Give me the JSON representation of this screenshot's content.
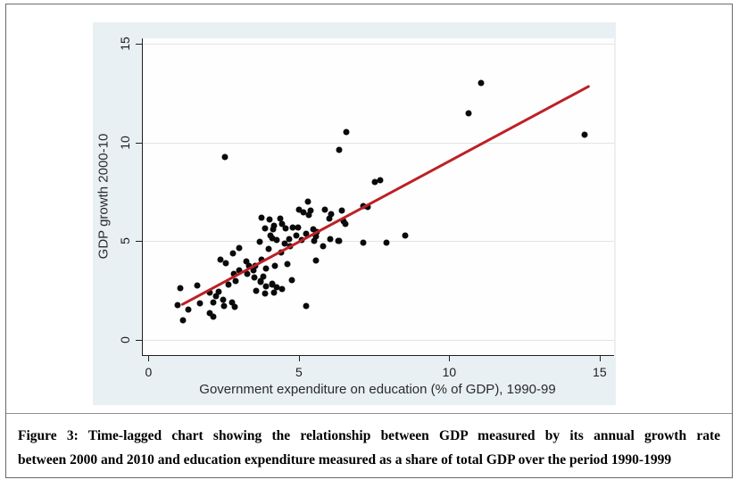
{
  "colors": {
    "chart_background": "#e9f0f3",
    "plot_background": "#fefefe",
    "gridline": "#e2e4e4",
    "axis_line": "#1f1f1f",
    "point_color": "#0a0a0a",
    "trend_line_color": "#bd2026",
    "caption_text": "#000000"
  },
  "caption": {
    "line1": "Figure 3: Time-lagged chart showing the relationship between GDP measured by its annual growth rate",
    "line2": "between 2000 and 2010 and education expenditure measured as a share of total GDP over the period 1990-1999"
  },
  "chart_data": {
    "type": "scatter",
    "title": "",
    "xlabel": "Government expenditure on education (% of GDP), 1990-99",
    "ylabel": "GDP growth 2000-10",
    "xticks": [
      0,
      5,
      10,
      15
    ],
    "yticks": [
      0,
      5,
      10,
      15
    ],
    "xlim": [
      -0.22,
      15.45
    ],
    "ylim": [
      -0.77,
      15.29
    ],
    "grid": "horizontal-only",
    "legend": "none",
    "trendline": {
      "x1": 1.1,
      "y1": 1.8,
      "x2": 14.6,
      "y2": 12.85
    },
    "points": [
      [
        0.95,
        1.75
      ],
      [
        1.04,
        2.64
      ],
      [
        1.12,
        1.0
      ],
      [
        1.28,
        1.52
      ],
      [
        1.59,
        2.75
      ],
      [
        1.69,
        1.86
      ],
      [
        2.02,
        2.38
      ],
      [
        2.11,
        1.9
      ],
      [
        2.02,
        1.37
      ],
      [
        2.12,
        1.19
      ],
      [
        2.3,
        2.42
      ],
      [
        2.21,
        2.2
      ],
      [
        2.44,
        2.04
      ],
      [
        2.47,
        1.71
      ],
      [
        2.74,
        1.89
      ],
      [
        2.83,
        1.66
      ],
      [
        2.63,
        2.79
      ],
      [
        2.8,
        3.35
      ],
      [
        2.98,
        3.52
      ],
      [
        2.86,
        2.99
      ],
      [
        2.36,
        4.07
      ],
      [
        2.53,
        3.89
      ],
      [
        3.0,
        4.65
      ],
      [
        2.77,
        4.4
      ],
      [
        3.22,
        4.0
      ],
      [
        3.32,
        3.74
      ],
      [
        3.45,
        3.54
      ],
      [
        3.25,
        3.35
      ],
      [
        3.48,
        3.17
      ],
      [
        3.71,
        2.94
      ],
      [
        3.79,
        3.2
      ],
      [
        3.89,
        2.71
      ],
      [
        4.09,
        2.84
      ],
      [
        4.24,
        2.68
      ],
      [
        4.41,
        2.56
      ],
      [
        3.69,
        2.99
      ],
      [
        4.07,
        2.79
      ],
      [
        4.73,
        3.05
      ],
      [
        3.55,
        2.49
      ],
      [
        3.84,
        2.34
      ],
      [
        4.14,
        2.38
      ],
      [
        3.52,
        3.77
      ],
      [
        3.89,
        3.62
      ],
      [
        4.17,
        3.77
      ],
      [
        4.58,
        3.85
      ],
      [
        3.74,
        4.07
      ],
      [
        3.67,
        4.98
      ],
      [
        3.97,
        4.6
      ],
      [
        4.37,
        4.45
      ],
      [
        4.68,
        4.75
      ],
      [
        4.49,
        4.9
      ],
      [
        4.01,
        5.28
      ],
      [
        4.09,
        5.16
      ],
      [
        3.84,
        5.66
      ],
      [
        4.14,
        5.81
      ],
      [
        3.74,
        6.19
      ],
      [
        3.99,
        6.11
      ],
      [
        4.53,
        5.66
      ],
      [
        4.78,
        5.7
      ],
      [
        4.88,
        5.28
      ],
      [
        5.21,
        5.4
      ],
      [
        4.93,
        5.7
      ],
      [
        4.34,
        6.15
      ],
      [
        4.42,
        5.88
      ],
      [
        4.11,
        5.61
      ],
      [
        5.45,
        5.61
      ],
      [
        5.57,
        5.46
      ],
      [
        5.53,
        5.23
      ],
      [
        5.47,
        5.02
      ],
      [
        4.24,
        5.05
      ],
      [
        4.66,
        5.13
      ],
      [
        5.06,
        5.05
      ],
      [
        6.02,
        5.13
      ],
      [
        6.27,
        5.01
      ],
      [
        7.1,
        4.95
      ],
      [
        7.88,
        4.95
      ],
      [
        8.5,
        5.31
      ],
      [
        5.53,
        4.04
      ],
      [
        5.77,
        4.75
      ],
      [
        6.3,
        5.0
      ],
      [
        6.51,
        5.88
      ],
      [
        6.46,
        6.03
      ],
      [
        4.96,
        6.61
      ],
      [
        5.13,
        6.48
      ],
      [
        5.3,
        6.33
      ],
      [
        5.36,
        6.56
      ],
      [
        5.82,
        6.6
      ],
      [
        5.99,
        6.15
      ],
      [
        6.04,
        6.4
      ],
      [
        6.39,
        6.56
      ],
      [
        5.28,
        7.0
      ],
      [
        7.1,
        6.8
      ],
      [
        7.26,
        6.72
      ],
      [
        5.21,
        1.73
      ],
      [
        2.51,
        9.28
      ],
      [
        6.31,
        9.62
      ],
      [
        6.54,
        10.53
      ],
      [
        7.5,
        8.0
      ],
      [
        7.67,
        8.09
      ],
      [
        10.6,
        11.49
      ],
      [
        11.03,
        13.02
      ],
      [
        14.48,
        10.41
      ]
    ]
  }
}
